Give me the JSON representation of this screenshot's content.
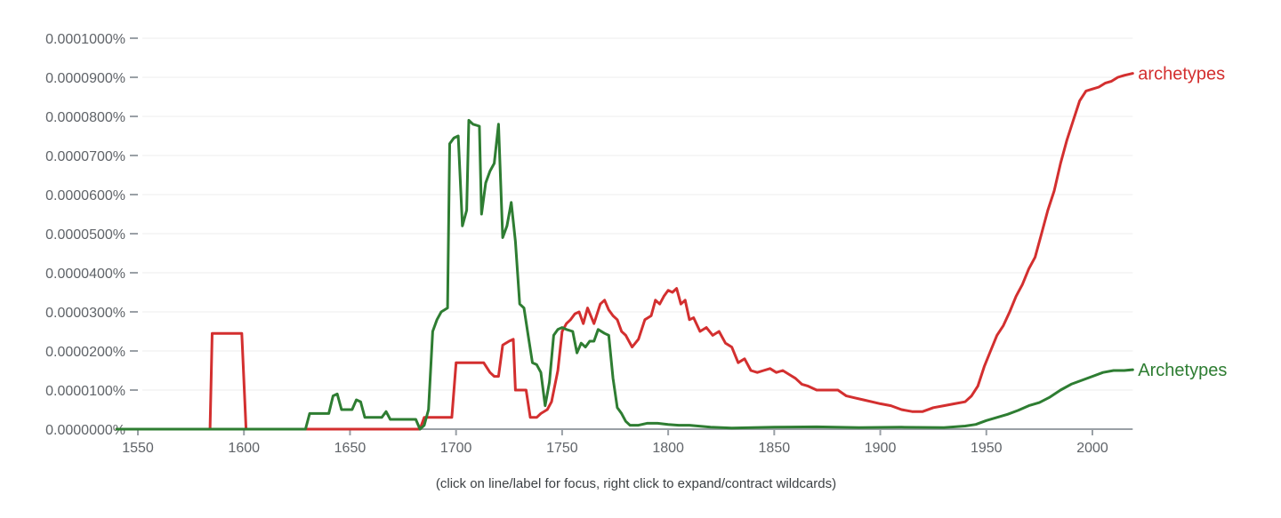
{
  "chart_data": {
    "type": "line",
    "title": "",
    "xlabel": "",
    "ylabel": "",
    "xlim": [
      1540,
      2019
    ],
    "ylim": [
      0,
      0.0001
    ],
    "value_unit_note": "values below are in units of 0.0000001% (e.g. 9.0 = 0.0000900%)",
    "y_ticks": [
      "0.0000000%",
      "0.0000100%",
      "0.0000200%",
      "0.0000300%",
      "0.0000400%",
      "0.0000500%",
      "0.0000600%",
      "0.0000700%",
      "0.0000800%",
      "0.0000900%",
      "0.0001000%"
    ],
    "x_ticks": [
      "1550",
      "1600",
      "1650",
      "1700",
      "1750",
      "1800",
      "1850",
      "1900",
      "1950",
      "2000"
    ],
    "grid": true,
    "legend_position": "inline-right",
    "series": [
      {
        "name": "archetypes",
        "color": "#d32f2f",
        "points": [
          [
            1540,
            0
          ],
          [
            1584,
            0
          ],
          [
            1585,
            2.45
          ],
          [
            1599,
            2.45
          ],
          [
            1601,
            0
          ],
          [
            1683,
            0
          ],
          [
            1685,
            0.3
          ],
          [
            1698,
            0.3
          ],
          [
            1700,
            1.7
          ],
          [
            1713,
            1.7
          ],
          [
            1716,
            1.45
          ],
          [
            1718,
            1.35
          ],
          [
            1720,
            1.35
          ],
          [
            1722,
            2.15
          ],
          [
            1725,
            2.25
          ],
          [
            1727,
            2.3
          ],
          [
            1728,
            1.0
          ],
          [
            1733,
            1.0
          ],
          [
            1735,
            0.3
          ],
          [
            1738,
            0.3
          ],
          [
            1740,
            0.4
          ],
          [
            1743,
            0.5
          ],
          [
            1745,
            0.7
          ],
          [
            1748,
            1.5
          ],
          [
            1750,
            2.5
          ],
          [
            1752,
            2.7
          ],
          [
            1754,
            2.8
          ],
          [
            1756,
            2.95
          ],
          [
            1758,
            3.0
          ],
          [
            1760,
            2.7
          ],
          [
            1762,
            3.1
          ],
          [
            1765,
            2.7
          ],
          [
            1768,
            3.2
          ],
          [
            1770,
            3.3
          ],
          [
            1772,
            3.05
          ],
          [
            1774,
            2.9
          ],
          [
            1776,
            2.8
          ],
          [
            1778,
            2.5
          ],
          [
            1780,
            2.4
          ],
          [
            1783,
            2.1
          ],
          [
            1786,
            2.3
          ],
          [
            1789,
            2.8
          ],
          [
            1792,
            2.9
          ],
          [
            1794,
            3.3
          ],
          [
            1796,
            3.2
          ],
          [
            1798,
            3.4
          ],
          [
            1800,
            3.55
          ],
          [
            1802,
            3.5
          ],
          [
            1804,
            3.6
          ],
          [
            1806,
            3.2
          ],
          [
            1808,
            3.3
          ],
          [
            1810,
            2.8
          ],
          [
            1812,
            2.85
          ],
          [
            1815,
            2.5
          ],
          [
            1818,
            2.6
          ],
          [
            1821,
            2.4
          ],
          [
            1824,
            2.5
          ],
          [
            1827,
            2.2
          ],
          [
            1830,
            2.1
          ],
          [
            1833,
            1.7
          ],
          [
            1836,
            1.8
          ],
          [
            1839,
            1.5
          ],
          [
            1842,
            1.45
          ],
          [
            1845,
            1.5
          ],
          [
            1848,
            1.55
          ],
          [
            1851,
            1.45
          ],
          [
            1854,
            1.5
          ],
          [
            1857,
            1.4
          ],
          [
            1860,
            1.3
          ],
          [
            1863,
            1.15
          ],
          [
            1866,
            1.1
          ],
          [
            1870,
            1.0
          ],
          [
            1875,
            1.0
          ],
          [
            1880,
            1.0
          ],
          [
            1884,
            0.85
          ],
          [
            1888,
            0.8
          ],
          [
            1892,
            0.75
          ],
          [
            1896,
            0.7
          ],
          [
            1900,
            0.65
          ],
          [
            1905,
            0.6
          ],
          [
            1910,
            0.5
          ],
          [
            1915,
            0.45
          ],
          [
            1920,
            0.45
          ],
          [
            1925,
            0.55
          ],
          [
            1930,
            0.6
          ],
          [
            1935,
            0.65
          ],
          [
            1940,
            0.7
          ],
          [
            1943,
            0.85
          ],
          [
            1946,
            1.1
          ],
          [
            1949,
            1.6
          ],
          [
            1952,
            2.0
          ],
          [
            1955,
            2.4
          ],
          [
            1958,
            2.65
          ],
          [
            1961,
            3.0
          ],
          [
            1964,
            3.4
          ],
          [
            1967,
            3.7
          ],
          [
            1970,
            4.1
          ],
          [
            1973,
            4.4
          ],
          [
            1976,
            5.0
          ],
          [
            1979,
            5.6
          ],
          [
            1982,
            6.1
          ],
          [
            1985,
            6.8
          ],
          [
            1988,
            7.4
          ],
          [
            1991,
            7.9
          ],
          [
            1994,
            8.4
          ],
          [
            1997,
            8.65
          ],
          [
            2000,
            8.7
          ],
          [
            2003,
            8.75
          ],
          [
            2006,
            8.85
          ],
          [
            2009,
            8.9
          ],
          [
            2012,
            9.0
          ],
          [
            2015,
            9.05
          ],
          [
            2019,
            9.1
          ]
        ]
      },
      {
        "name": "Archetypes",
        "color": "#2e7d32",
        "points": [
          [
            1540,
            0
          ],
          [
            1629,
            0
          ],
          [
            1631,
            0.4
          ],
          [
            1640,
            0.4
          ],
          [
            1642,
            0.85
          ],
          [
            1644,
            0.9
          ],
          [
            1646,
            0.5
          ],
          [
            1651,
            0.5
          ],
          [
            1653,
            0.75
          ],
          [
            1655,
            0.7
          ],
          [
            1657,
            0.3
          ],
          [
            1665,
            0.3
          ],
          [
            1667,
            0.45
          ],
          [
            1669,
            0.25
          ],
          [
            1681,
            0.25
          ],
          [
            1683,
            0
          ],
          [
            1685,
            0.1
          ],
          [
            1687,
            0.5
          ],
          [
            1689,
            2.5
          ],
          [
            1691,
            2.8
          ],
          [
            1693,
            3.0
          ],
          [
            1696,
            3.1
          ],
          [
            1697,
            7.3
          ],
          [
            1699,
            7.45
          ],
          [
            1701,
            7.5
          ],
          [
            1703,
            5.2
          ],
          [
            1705,
            5.6
          ],
          [
            1706,
            7.9
          ],
          [
            1708,
            7.8
          ],
          [
            1711,
            7.75
          ],
          [
            1712,
            5.5
          ],
          [
            1714,
            6.3
          ],
          [
            1716,
            6.6
          ],
          [
            1718,
            6.8
          ],
          [
            1720,
            7.8
          ],
          [
            1722,
            4.9
          ],
          [
            1724,
            5.2
          ],
          [
            1726,
            5.8
          ],
          [
            1728,
            4.8
          ],
          [
            1730,
            3.2
          ],
          [
            1732,
            3.1
          ],
          [
            1734,
            2.4
          ],
          [
            1736,
            1.7
          ],
          [
            1738,
            1.65
          ],
          [
            1740,
            1.45
          ],
          [
            1742,
            0.6
          ],
          [
            1744,
            1.2
          ],
          [
            1746,
            2.4
          ],
          [
            1748,
            2.55
          ],
          [
            1750,
            2.6
          ],
          [
            1752,
            2.55
          ],
          [
            1755,
            2.5
          ],
          [
            1757,
            1.95
          ],
          [
            1759,
            2.2
          ],
          [
            1761,
            2.1
          ],
          [
            1763,
            2.25
          ],
          [
            1765,
            2.25
          ],
          [
            1767,
            2.55
          ],
          [
            1770,
            2.45
          ],
          [
            1772,
            2.4
          ],
          [
            1774,
            1.3
          ],
          [
            1776,
            0.55
          ],
          [
            1778,
            0.4
          ],
          [
            1780,
            0.2
          ],
          [
            1782,
            0.1
          ],
          [
            1786,
            0.1
          ],
          [
            1790,
            0.15
          ],
          [
            1795,
            0.15
          ],
          [
            1800,
            0.12
          ],
          [
            1805,
            0.1
          ],
          [
            1810,
            0.1
          ],
          [
            1820,
            0.05
          ],
          [
            1830,
            0.03
          ],
          [
            1850,
            0.05
          ],
          [
            1870,
            0.06
          ],
          [
            1890,
            0.04
          ],
          [
            1910,
            0.05
          ],
          [
            1930,
            0.04
          ],
          [
            1940,
            0.08
          ],
          [
            1945,
            0.12
          ],
          [
            1950,
            0.22
          ],
          [
            1955,
            0.3
          ],
          [
            1960,
            0.38
          ],
          [
            1965,
            0.48
          ],
          [
            1970,
            0.6
          ],
          [
            1975,
            0.68
          ],
          [
            1980,
            0.82
          ],
          [
            1985,
            1.0
          ],
          [
            1990,
            1.15
          ],
          [
            1995,
            1.25
          ],
          [
            2000,
            1.35
          ],
          [
            2005,
            1.45
          ],
          [
            2010,
            1.5
          ],
          [
            2015,
            1.5
          ],
          [
            2019,
            1.52
          ]
        ]
      }
    ]
  },
  "footnote": "(click on line/label for focus, right click to expand/contract wildcards)"
}
